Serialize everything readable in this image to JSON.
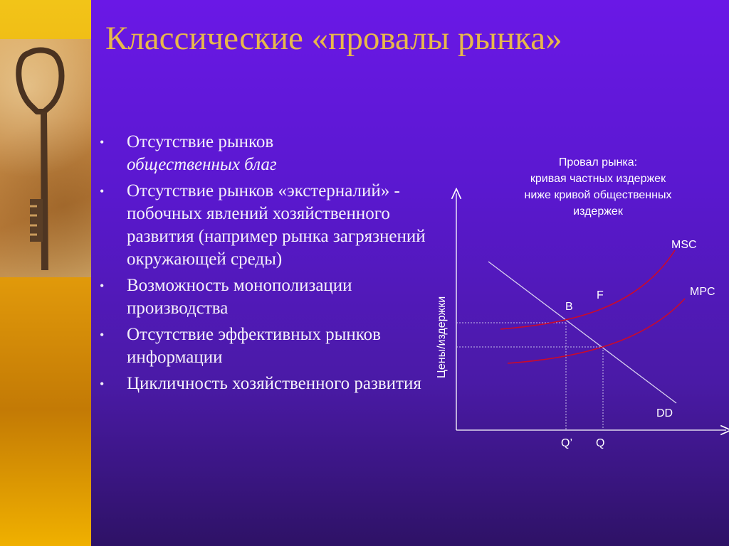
{
  "slide": {
    "title": "Классические «провалы рынка»",
    "bullets": [
      {
        "main": "Отсутствие рынков",
        "sub": "общественных благ"
      },
      {
        "main": "Отсутствие рынков «экстерналий» - побочных явлений хозяйственного развития (например рынка загрязнений окружающей среды)",
        "sub": ""
      },
      {
        "main": "Возможность монополизации производства",
        "sub": ""
      },
      {
        "main": "Отсутствие эффективных рынков информации",
        "sub": ""
      },
      {
        "main": "Цикличность хозяйственного развития",
        "sub": ""
      }
    ],
    "bullet_glyph": "•"
  },
  "diagram": {
    "caption_lines": [
      "Провал рынка:",
      "кривая частных издержек",
      "ниже кривой общественных",
      "издержек"
    ],
    "y_axis_label": "Цены/издержки",
    "curve_labels": {
      "msc": "MSC",
      "mpc": "MPC",
      "dd": "DD"
    },
    "point_labels": {
      "b": "B",
      "f": "F"
    },
    "quantity_labels": {
      "q_prime": "Q’",
      "q": "Q"
    },
    "colors": {
      "cost_curves": "#cc0a2a",
      "axes": "#ffffff",
      "demand": "#d8d0f0",
      "guides": "#c8c0e8"
    }
  }
}
